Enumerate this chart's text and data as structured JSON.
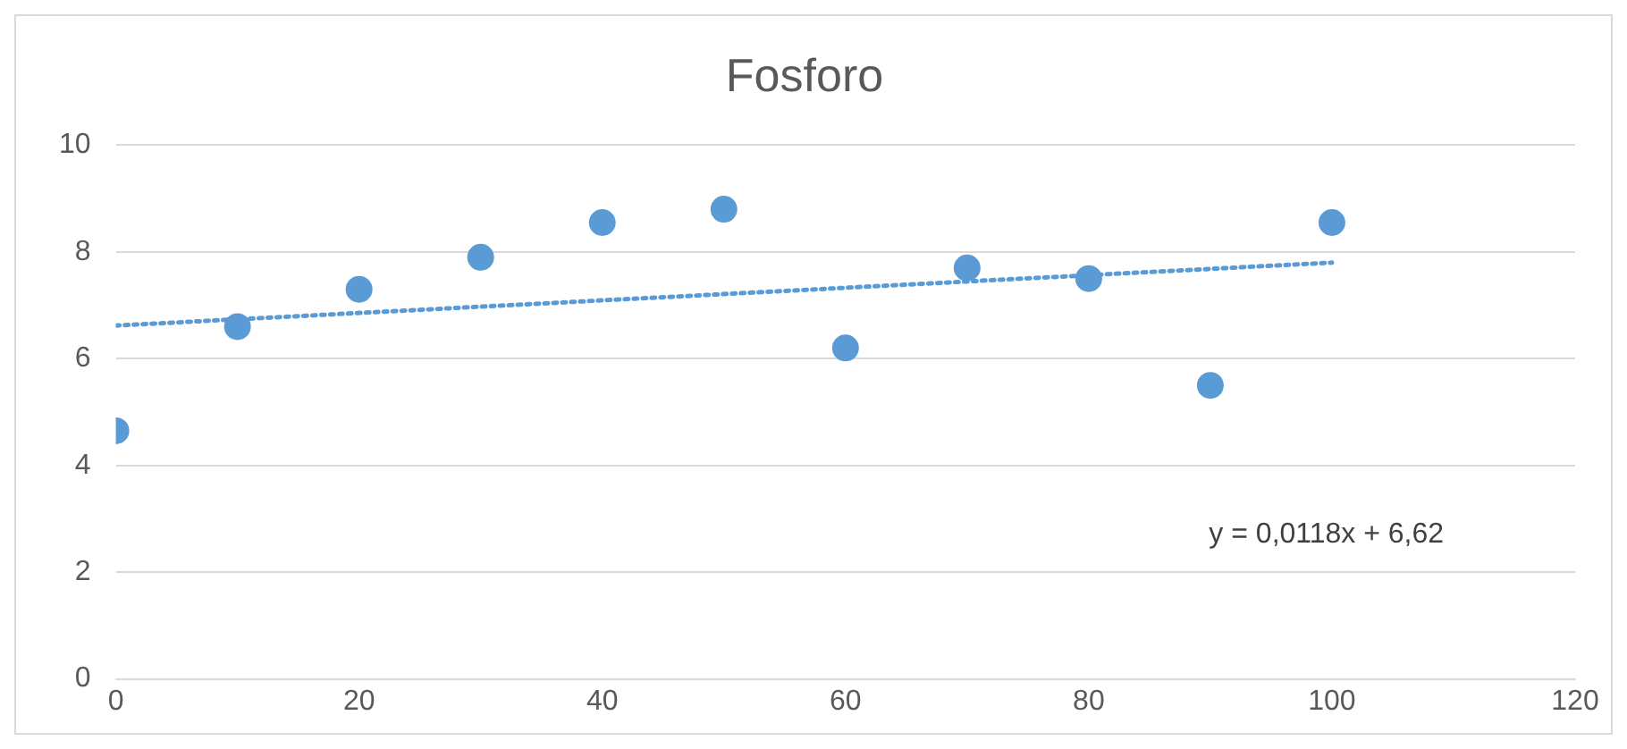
{
  "chart_data": {
    "type": "scatter",
    "title": "Fosforo",
    "x": [
      0,
      10,
      20,
      30,
      40,
      50,
      60,
      70,
      80,
      90,
      100
    ],
    "xlim": [
      0,
      120
    ],
    "xticks": [
      0,
      20,
      40,
      60,
      80,
      100,
      120
    ],
    "ylim": [
      0,
      10
    ],
    "yticks": [
      0,
      2,
      4,
      6,
      8,
      10
    ],
    "grid": "y",
    "legend": false,
    "annotations": [
      "y = 0,0118x + 6,62"
    ],
    "series": [
      {
        "type": "scatter",
        "color": "#5b9bd5",
        "marker": "circle",
        "values": [
          4.65,
          6.6,
          7.3,
          7.9,
          8.55,
          8.8,
          6.2,
          7.7,
          7.5,
          5.5,
          8.55
        ]
      },
      {
        "type": "line",
        "color": "#5b9bd5",
        "marker": "none",
        "line_style": "dotted",
        "x": [
          0,
          100
        ],
        "values": [
          6.62,
          7.8
        ]
      }
    ]
  }
}
